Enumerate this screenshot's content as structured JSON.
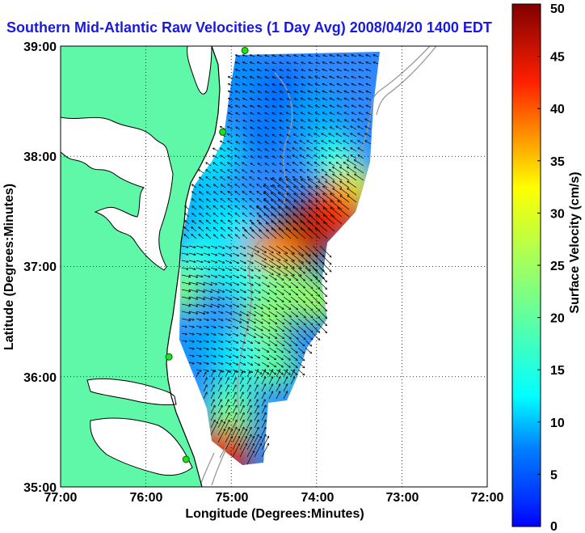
{
  "chart_data": {
    "type": "heatmap",
    "title": "Southern Mid-Atlantic Raw Velocities (1 Day Avg) 2008/04/20 1400 EDT",
    "xlabel": "Longitude (Degrees:Minutes)",
    "ylabel": "Latitude (Degrees:Minutes)",
    "x_ticks": [
      "77:00",
      "76:00",
      "75:00",
      "74:00",
      "73:00",
      "72:00"
    ],
    "y_ticks": [
      "39:00",
      "38:00",
      "37:00",
      "36:00",
      "35:00"
    ],
    "xlim": [
      -77,
      -72
    ],
    "ylim": [
      35,
      39
    ],
    "grid": true,
    "colorbar": {
      "label": "Surface Velocity (cm/s)",
      "range": [
        0,
        50
      ],
      "ticks": [
        "0",
        "5",
        "10",
        "15",
        "20",
        "25",
        "30",
        "35",
        "40",
        "45",
        "50"
      ],
      "colormap": "jet"
    },
    "land_color": "#5ff7a8",
    "stations": [
      {
        "lon": -74.84,
        "lat": 38.96
      },
      {
        "lon": -75.1,
        "lat": 38.22
      },
      {
        "lon": -75.73,
        "lat": 36.18
      },
      {
        "lon": -75.53,
        "lat": 35.25
      }
    ],
    "velocity_regions": [
      {
        "lon": -74.9,
        "lat": 38.7,
        "speed": 8
      },
      {
        "lon": -74.4,
        "lat": 38.6,
        "speed": 6
      },
      {
        "lon": -74.0,
        "lat": 38.4,
        "speed": 9
      },
      {
        "lon": -74.6,
        "lat": 38.2,
        "speed": 7
      },
      {
        "lon": -75.2,
        "lat": 38.0,
        "speed": 12
      },
      {
        "lon": -73.8,
        "lat": 38.0,
        "speed": 14
      },
      {
        "lon": -73.6,
        "lat": 37.7,
        "speed": 30
      },
      {
        "lon": -73.8,
        "lat": 37.5,
        "speed": 42
      },
      {
        "lon": -74.2,
        "lat": 37.25,
        "speed": 47
      },
      {
        "lon": -74.5,
        "lat": 37.1,
        "speed": 38
      },
      {
        "lon": -75.4,
        "lat": 37.6,
        "speed": 10
      },
      {
        "lon": -75.0,
        "lat": 37.4,
        "speed": 12
      },
      {
        "lon": -75.4,
        "lat": 37.1,
        "speed": 14
      },
      {
        "lon": -75.6,
        "lat": 36.8,
        "speed": 22
      },
      {
        "lon": -74.9,
        "lat": 36.9,
        "speed": 14
      },
      {
        "lon": -74.4,
        "lat": 36.8,
        "speed": 22
      },
      {
        "lon": -74.0,
        "lat": 36.7,
        "speed": 25
      },
      {
        "lon": -74.6,
        "lat": 36.5,
        "speed": 24
      },
      {
        "lon": -75.3,
        "lat": 36.3,
        "speed": 9
      },
      {
        "lon": -74.9,
        "lat": 36.2,
        "speed": 12
      },
      {
        "lon": -74.5,
        "lat": 36.1,
        "speed": 20
      },
      {
        "lon": -75.0,
        "lat": 35.8,
        "speed": 16
      },
      {
        "lon": -75.0,
        "lat": 35.6,
        "speed": 22
      },
      {
        "lon": -75.1,
        "lat": 35.3,
        "speed": 44
      }
    ]
  }
}
